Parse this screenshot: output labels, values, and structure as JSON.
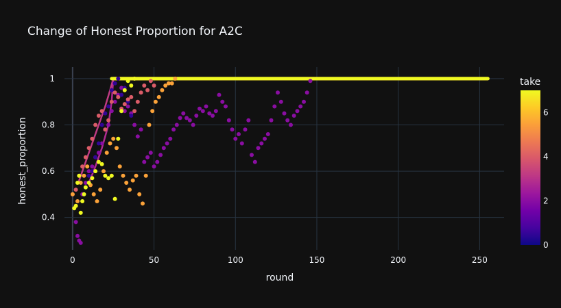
{
  "chart_data": {
    "type": "scatter",
    "title": "Change of Honest Proportion for A2C",
    "xlabel": "round",
    "ylabel": "honest_proportion",
    "xlim": [
      -5,
      265
    ],
    "ylim": [
      0.26,
      1.05
    ],
    "x_ticks": [
      0,
      50,
      100,
      150,
      200,
      250
    ],
    "y_ticks": [
      0.4,
      0.6,
      0.8,
      1
    ],
    "grid": true,
    "colorbar": {
      "title": "take",
      "range": [
        0,
        7
      ],
      "ticks": [
        0,
        2,
        4,
        6
      ],
      "colorscale": [
        "#0d0887",
        "#46039f",
        "#7201a8",
        "#9c179e",
        "#bd3786",
        "#d8576b",
        "#ed7953",
        "#fb9f3a",
        "#fdca26",
        "#f0f921"
      ]
    },
    "series": [
      {
        "take": 2,
        "points": [
          [
            2,
            0.38
          ],
          [
            3,
            0.32
          ],
          [
            4,
            0.3
          ],
          [
            5,
            0.29
          ],
          [
            6,
            0.5
          ],
          [
            8,
            0.55
          ],
          [
            10,
            0.6
          ],
          [
            12,
            0.62
          ],
          [
            14,
            0.66
          ],
          [
            16,
            0.68
          ],
          [
            18,
            0.72
          ],
          [
            20,
            0.78
          ],
          [
            22,
            0.8
          ],
          [
            24,
            0.86
          ],
          [
            26,
            0.9
          ],
          [
            28,
            0.93
          ],
          [
            30,
            0.96
          ],
          [
            32,
            0.86
          ],
          [
            34,
            0.88
          ],
          [
            36,
            0.85
          ],
          [
            38,
            0.8
          ],
          [
            40,
            0.75
          ],
          [
            42,
            0.78
          ],
          [
            44,
            0.64
          ],
          [
            46,
            0.66
          ],
          [
            48,
            0.68
          ],
          [
            50,
            0.62
          ],
          [
            52,
            0.64
          ],
          [
            54,
            0.67
          ],
          [
            56,
            0.7
          ],
          [
            58,
            0.72
          ],
          [
            60,
            0.74
          ],
          [
            62,
            0.78
          ],
          [
            64,
            0.8
          ],
          [
            66,
            0.83
          ],
          [
            68,
            0.85
          ],
          [
            70,
            0.83
          ],
          [
            72,
            0.82
          ],
          [
            74,
            0.8
          ],
          [
            76,
            0.84
          ],
          [
            78,
            0.87
          ],
          [
            80,
            0.86
          ],
          [
            82,
            0.88
          ],
          [
            84,
            0.85
          ],
          [
            86,
            0.84
          ],
          [
            88,
            0.86
          ],
          [
            90,
            0.93
          ],
          [
            92,
            0.9
          ],
          [
            94,
            0.88
          ],
          [
            96,
            0.82
          ],
          [
            98,
            0.78
          ],
          [
            100,
            0.74
          ],
          [
            102,
            0.76
          ],
          [
            104,
            0.72
          ],
          [
            106,
            0.78
          ],
          [
            108,
            0.82
          ],
          [
            110,
            0.67
          ],
          [
            112,
            0.64
          ],
          [
            114,
            0.7
          ],
          [
            116,
            0.72
          ],
          [
            118,
            0.74
          ],
          [
            120,
            0.76
          ],
          [
            122,
            0.82
          ],
          [
            124,
            0.88
          ],
          [
            126,
            0.94
          ],
          [
            128,
            0.9
          ],
          [
            130,
            0.85
          ],
          [
            132,
            0.82
          ],
          [
            134,
            0.8
          ],
          [
            136,
            0.84
          ],
          [
            138,
            0.86
          ],
          [
            140,
            0.88
          ],
          [
            142,
            0.9
          ],
          [
            144,
            0.94
          ],
          [
            146,
            0.99
          ]
        ]
      },
      {
        "take": 0.5,
        "points": [
          [
            16,
            0.72
          ],
          [
            18,
            0.8
          ],
          [
            20,
            0.85
          ],
          [
            22,
            0.88
          ],
          [
            24,
            0.95
          ],
          [
            26,
            0.98
          ],
          [
            28,
            1
          ],
          [
            30,
            0.93
          ],
          [
            32,
            0.96
          ],
          [
            34,
            0.9
          ],
          [
            36,
            0.84
          ],
          [
            14,
            0.66
          ],
          [
            12,
            0.6
          ],
          [
            10,
            0.58
          ]
        ]
      },
      {
        "take": 4,
        "points": [
          [
            0,
            0.5
          ],
          [
            2,
            0.52
          ],
          [
            4,
            0.58
          ],
          [
            6,
            0.62
          ],
          [
            8,
            0.66
          ],
          [
            10,
            0.7
          ],
          [
            12,
            0.74
          ],
          [
            14,
            0.8
          ],
          [
            16,
            0.84
          ],
          [
            18,
            0.86
          ],
          [
            20,
            0.78
          ],
          [
            22,
            0.82
          ],
          [
            24,
            0.9
          ],
          [
            26,
            0.94
          ],
          [
            28,
            0.92
          ],
          [
            30,
            0.87
          ],
          [
            32,
            0.89
          ],
          [
            34,
            0.91
          ],
          [
            36,
            0.92
          ],
          [
            38,
            0.86
          ],
          [
            40,
            0.9
          ],
          [
            42,
            0.94
          ],
          [
            44,
            0.97
          ],
          [
            46,
            0.95
          ],
          [
            48,
            0.99
          ],
          [
            50,
            0.97
          ]
        ]
      },
      {
        "take": 5.5,
        "points": [
          [
            0,
            0.5
          ],
          [
            3,
            0.47
          ],
          [
            5,
            0.55
          ],
          [
            7,
            0.58
          ],
          [
            9,
            0.62
          ],
          [
            11,
            0.54
          ],
          [
            13,
            0.5
          ],
          [
            15,
            0.47
          ],
          [
            17,
            0.52
          ],
          [
            19,
            0.6
          ],
          [
            21,
            0.68
          ],
          [
            23,
            0.72
          ],
          [
            25,
            0.74
          ],
          [
            27,
            0.7
          ],
          [
            29,
            0.62
          ],
          [
            31,
            0.58
          ],
          [
            33,
            0.55
          ],
          [
            35,
            0.52
          ],
          [
            37,
            0.56
          ],
          [
            39,
            0.58
          ],
          [
            41,
            0.5
          ],
          [
            43,
            0.46
          ],
          [
            45,
            0.58
          ],
          [
            47,
            0.8
          ],
          [
            49,
            0.86
          ],
          [
            51,
            0.9
          ],
          [
            53,
            0.92
          ],
          [
            55,
            0.95
          ],
          [
            57,
            0.97
          ],
          [
            59,
            0.98
          ],
          [
            61,
            0.98
          ],
          [
            63,
            1
          ]
        ]
      },
      {
        "take": 7,
        "points": [
          [
            1,
            0.44
          ],
          [
            2,
            0.45
          ],
          [
            3,
            0.55
          ],
          [
            4,
            0.58
          ],
          [
            5,
            0.42
          ],
          [
            6,
            0.47
          ],
          [
            7,
            0.5
          ],
          [
            8,
            0.53
          ],
          [
            10,
            0.55
          ],
          [
            12,
            0.57
          ],
          [
            14,
            0.6
          ],
          [
            16,
            0.64
          ],
          [
            18,
            0.63
          ],
          [
            20,
            0.58
          ],
          [
            22,
            0.57
          ],
          [
            24,
            0.58
          ],
          [
            26,
            0.48
          ],
          [
            28,
            0.74
          ],
          [
            30,
            0.86
          ],
          [
            32,
            0.95
          ],
          [
            34,
            0.99
          ],
          [
            36,
            0.97
          ],
          [
            38,
            1
          ]
        ]
      }
    ],
    "lines": [
      {
        "take": 3.2,
        "points": [
          [
            4,
            0.56
          ],
          [
            8,
            0.64
          ],
          [
            12,
            0.72
          ],
          [
            16,
            0.8
          ],
          [
            20,
            0.88
          ],
          [
            23,
            0.95
          ],
          [
            25,
            1
          ]
        ]
      },
      {
        "take": 2.8,
        "points": [
          [
            10,
            0.55
          ],
          [
            14,
            0.62
          ],
          [
            18,
            0.7
          ],
          [
            22,
            0.8
          ],
          [
            24,
            0.9
          ],
          [
            25,
            1
          ]
        ]
      },
      {
        "take": 1.5,
        "points": [
          [
            25,
            1
          ],
          [
            140,
            1
          ]
        ]
      },
      {
        "take": 5.0,
        "points": [
          [
            25,
            1
          ],
          [
            255,
            1
          ]
        ]
      },
      {
        "take": 7.0,
        "points": [
          [
            24,
            1
          ],
          [
            255,
            1
          ]
        ]
      }
    ]
  }
}
